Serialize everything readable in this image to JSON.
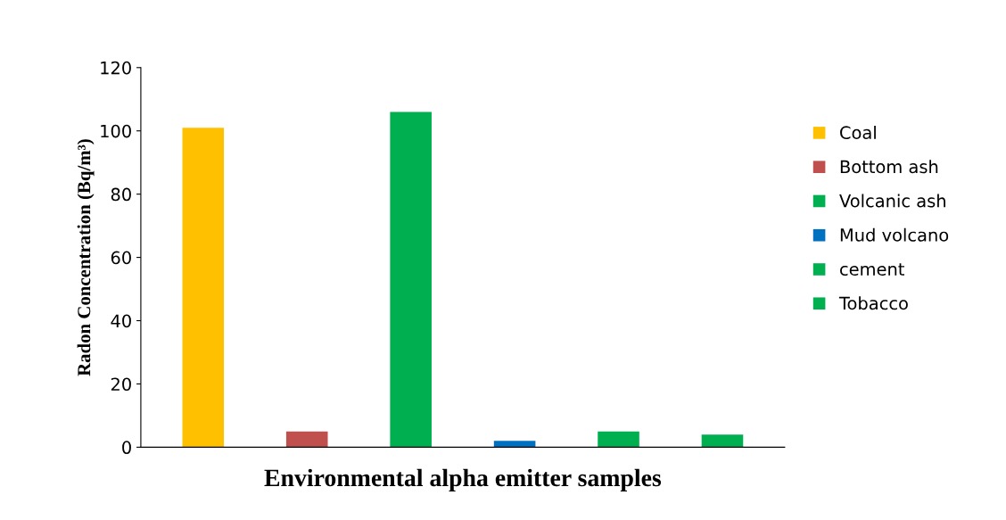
{
  "chart_data": {
    "type": "bar",
    "xlabel": "Environmental alpha emitter samples",
    "ylabel": "Radon Concentration (Bq/m³)",
    "categories": [
      null,
      null,
      null,
      null,
      null,
      null
    ],
    "series": [
      {
        "name": "Coal",
        "color": "#ffc000",
        "values": [
          101,
          null,
          null,
          null,
          null,
          null
        ]
      },
      {
        "name": "Bottom ash",
        "color": "#c0504d",
        "values": [
          null,
          5,
          null,
          null,
          null,
          null
        ]
      },
      {
        "name": "Volcanic ash",
        "color": "#00b050",
        "values": [
          null,
          null,
          106,
          null,
          null,
          null
        ]
      },
      {
        "name": "Mud volcano",
        "color": "#0070c0",
        "values": [
          null,
          null,
          null,
          2,
          null,
          null
        ]
      },
      {
        "name": "cement",
        "color": "#00b050",
        "values": [
          null,
          null,
          null,
          null,
          5,
          null
        ]
      },
      {
        "name": "Tobacco",
        "color": "#00b050",
        "values": [
          null,
          null,
          null,
          null,
          null,
          4
        ]
      }
    ],
    "ylim": [
      0,
      120
    ],
    "yticks": [
      0,
      20,
      40,
      60,
      80,
      100,
      120
    ],
    "grid": false,
    "legend": "right"
  }
}
